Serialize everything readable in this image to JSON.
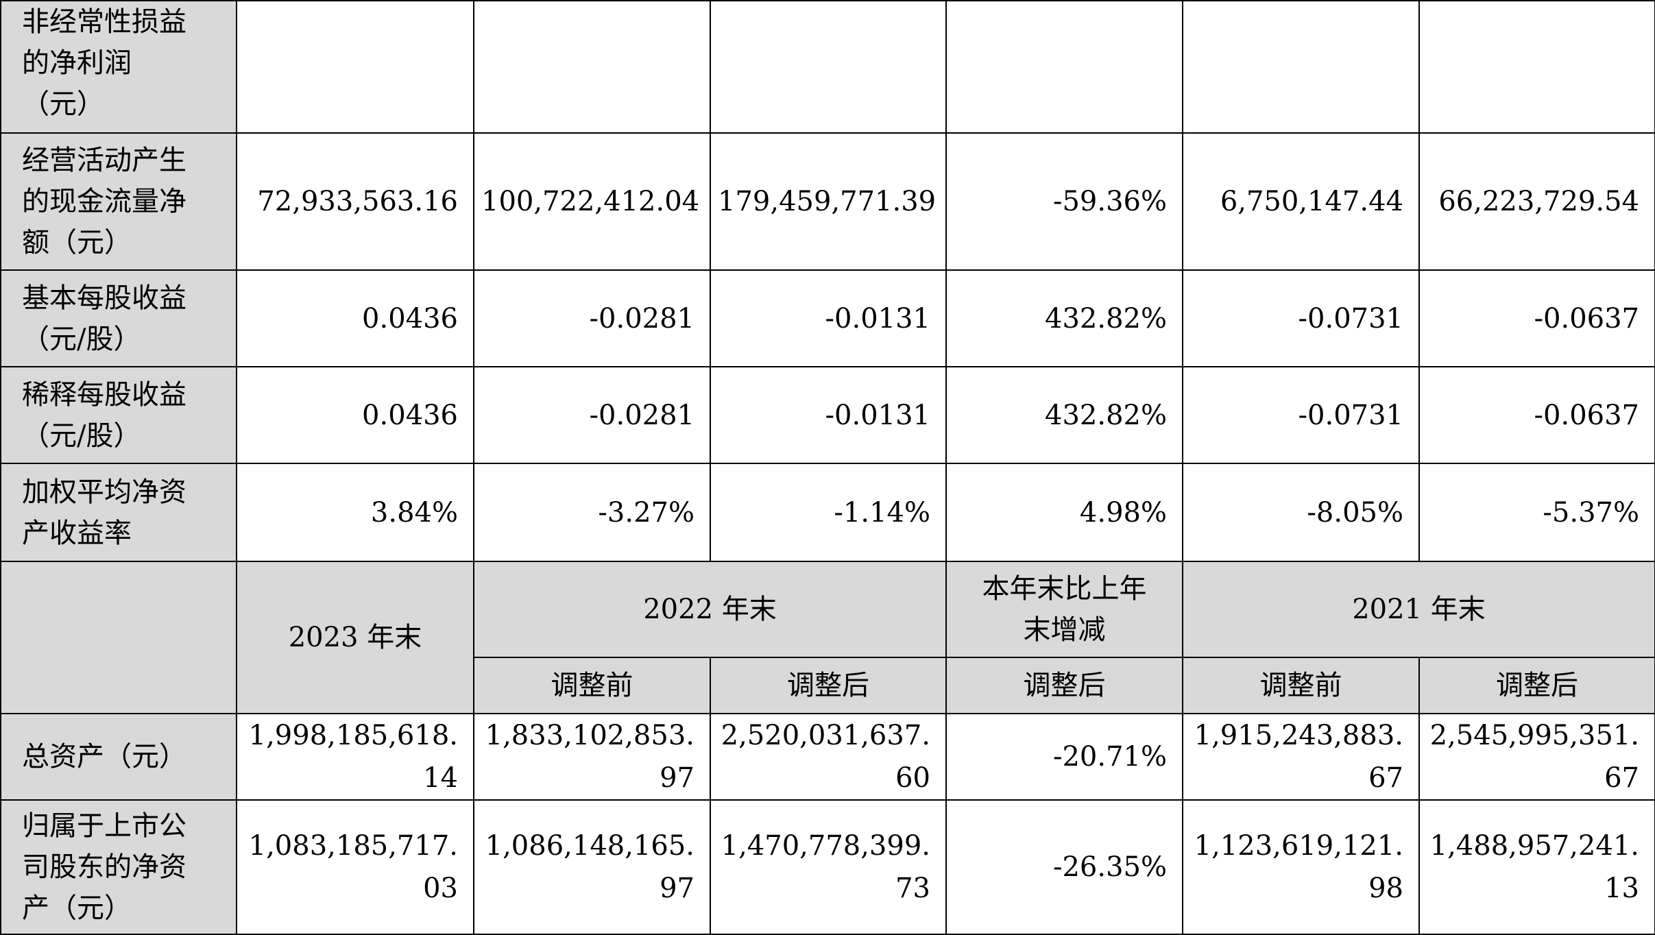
{
  "rows_top": [
    {
      "label_lines": [
        "非经常性损益",
        "的净利润",
        "（元）"
      ],
      "values": [
        "",
        "",
        "",
        "",
        "",
        ""
      ]
    },
    {
      "label_lines": [
        "经营活动产生",
        "的现金流量净",
        "额（元）"
      ],
      "values": [
        "72,933,563.16",
        "100,722,412.04",
        "179,459,771.39",
        "-59.36%",
        "6,750,147.44",
        "66,223,729.54"
      ]
    },
    {
      "label_lines": [
        "基本每股收益",
        "（元/股）"
      ],
      "values": [
        "0.0436",
        "-0.0281",
        "-0.0131",
        "432.82%",
        "-0.0731",
        "-0.0637"
      ]
    },
    {
      "label_lines": [
        "稀释每股收益",
        "（元/股）"
      ],
      "values": [
        "0.0436",
        "-0.0281",
        "-0.0131",
        "432.82%",
        "-0.0731",
        "-0.0637"
      ]
    },
    {
      "label_lines": [
        "加权平均净资",
        "产收益率"
      ],
      "values": [
        "3.84%",
        "-3.27%",
        "-1.14%",
        "4.98%",
        "-8.05%",
        "-5.37%"
      ]
    }
  ],
  "header": {
    "col_2023": "2023 年末",
    "col_2022": "2022 年末",
    "col_change_lines": [
      "本年末比上年",
      "末增减"
    ],
    "col_2021": "2021 年末",
    "before_adj": "调整前",
    "after_adj": "调整后"
  },
  "rows_bottom": [
    {
      "label_lines": [
        "总资产（元）"
      ],
      "values": [
        [
          "1,998,185,618.",
          "14"
        ],
        [
          "1,833,102,853.",
          "97"
        ],
        [
          "2,520,031,637.",
          "60"
        ],
        [
          "-20.71%"
        ],
        [
          "1,915,243,883.",
          "67"
        ],
        [
          "2,545,995,351.",
          "67"
        ]
      ]
    },
    {
      "label_lines": [
        "归属于上市公",
        "司股东的净资",
        "产（元）"
      ],
      "values": [
        [
          "1,083,185,717.",
          "03"
        ],
        [
          "1,086,148,165.",
          "97"
        ],
        [
          "1,470,778,399.",
          "73"
        ],
        [
          "-26.35%"
        ],
        [
          "1,123,619,121.",
          "98"
        ],
        [
          "1,488,957,241.",
          "13"
        ]
      ]
    }
  ],
  "colors": {
    "label_bg": "#d9d9d9",
    "border": "#000000",
    "text": "#000000"
  }
}
